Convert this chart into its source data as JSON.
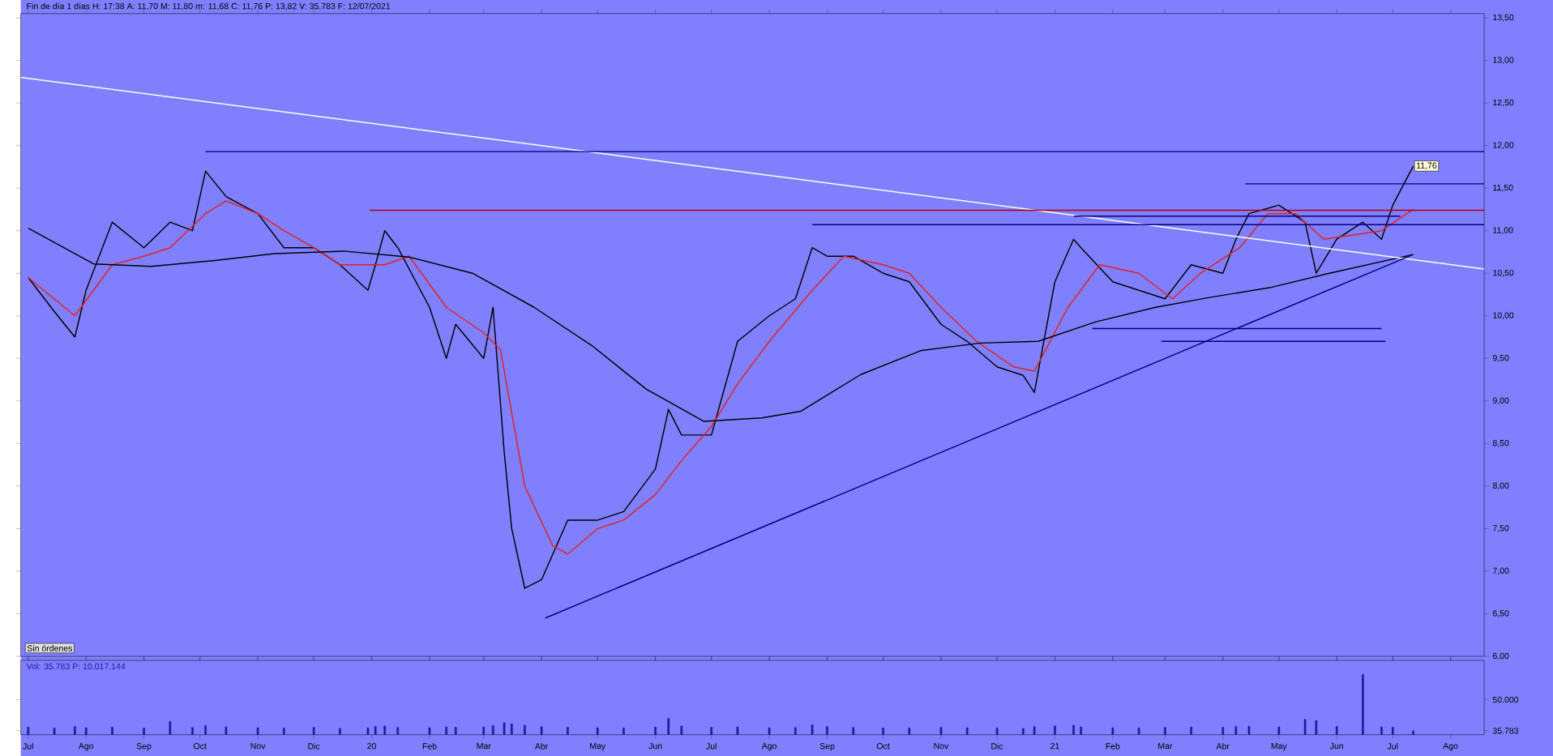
{
  "chart_data": [
    {
      "type": "line",
      "title": "Fin de día 1 días  H: 17:38  A: 11,70  M: 11,80  m: 11,68  C: 11,76  P: 13,82  V: 35.783  F: 12/07/2021",
      "xlim": [
        "2019-06-27",
        "2021-08-19"
      ],
      "ylim": [
        6,
        13.55
      ],
      "tick_labels": "y",
      "xticks": [
        {
          "value": "2019-07-01",
          "label": null
        },
        {
          "value": "2019-08-01",
          "label": null
        },
        {
          "value": "2019-09-01",
          "label": null
        },
        {
          "value": "2019-10-01",
          "label": null
        },
        {
          "value": "2019-11-01",
          "label": null
        },
        {
          "value": "2019-12-01",
          "label": null
        },
        {
          "value": "2020-01-01",
          "label": null
        },
        {
          "value": "2020-02-01",
          "label": null
        },
        {
          "value": "2020-03-01",
          "label": null
        },
        {
          "value": "2020-04-01",
          "label": null
        },
        {
          "value": "2020-05-01",
          "label": null
        },
        {
          "value": "2020-06-01",
          "label": null
        },
        {
          "value": "2020-07-01",
          "label": null
        },
        {
          "value": "2020-08-01",
          "label": null
        },
        {
          "value": "2020-09-01",
          "label": null
        },
        {
          "value": "2020-10-01",
          "label": null
        },
        {
          "value": "2020-11-01",
          "label": null
        },
        {
          "value": "2020-12-01",
          "label": null
        },
        {
          "value": "2021-01-01",
          "label": null
        },
        {
          "value": "2021-02-01",
          "label": null
        },
        {
          "value": "2021-03-01",
          "label": null
        },
        {
          "value": "2021-04-01",
          "label": null
        },
        {
          "value": "2021-05-01",
          "label": null
        },
        {
          "value": "2021-06-01",
          "label": null
        },
        {
          "value": "2021-07-01",
          "label": null
        },
        {
          "value": "2021-08-01",
          "label": null
        }
      ],
      "yticks": [
        {
          "value": 6,
          "label": "6,00"
        },
        {
          "value": 6.5,
          "label": "6,50"
        },
        {
          "value": 7,
          "label": "7,00"
        },
        {
          "value": 7.5,
          "label": "7,50"
        },
        {
          "value": 8,
          "label": "8,00"
        },
        {
          "value": 8.5,
          "label": "8,50"
        },
        {
          "value": 9,
          "label": "9,00"
        },
        {
          "value": 9.5,
          "label": "9,50"
        },
        {
          "value": 10,
          "label": "10,00"
        },
        {
          "value": 10.5,
          "label": "10,50"
        },
        {
          "value": 11,
          "label": "11,00"
        },
        {
          "value": 11.5,
          "label": "11,50"
        },
        {
          "value": 12,
          "label": "12,00"
        },
        {
          "value": 12.5,
          "label": "12,50"
        },
        {
          "value": 13,
          "label": "13,00"
        },
        {
          "value": 13.5,
          "label": "13,50"
        }
      ],
      "series": [
        {
          "color": "#000000",
          "x": [
            "2019-07-01",
            "2019-07-15",
            "2019-07-26",
            "2019-08-01",
            "2019-08-15",
            "2019-09-01",
            "2019-09-15",
            "2019-09-27",
            "2019-10-04",
            "2019-10-15",
            "2019-11-01",
            "2019-11-15",
            "2019-12-01",
            "2019-12-15",
            "2019-12-30",
            "2020-01-03",
            "2020-01-08",
            "2020-01-15",
            "2020-02-01",
            "2020-02-10",
            "2020-02-15",
            "2020-03-01",
            "2020-03-06",
            "2020-03-12",
            "2020-03-16",
            "2020-03-23",
            "2020-04-01",
            "2020-04-15",
            "2020-05-01",
            "2020-05-15",
            "2020-06-01",
            "2020-06-08",
            "2020-06-15",
            "2020-07-01",
            "2020-07-15",
            "2020-08-01",
            "2020-08-15",
            "2020-08-24",
            "2020-09-01",
            "2020-09-15",
            "2020-10-01",
            "2020-10-15",
            "2020-11-01",
            "2020-11-15",
            "2020-12-01",
            "2020-12-15",
            "2020-12-21",
            "2021-01-01",
            "2021-01-11",
            "2021-01-15",
            "2021-02-01",
            "2021-02-15",
            "2021-03-01",
            "2021-03-15",
            "2021-04-01",
            "2021-04-08",
            "2021-04-15",
            "2021-05-01",
            "2021-05-15",
            "2021-05-21",
            "2021-06-01",
            "2021-06-15",
            "2021-06-25",
            "2021-07-01",
            "2021-07-12"
          ],
          "values": [
            10.45,
            10.05,
            9.75,
            10.3,
            11.1,
            10.8,
            11.1,
            11.0,
            11.7,
            11.4,
            11.2,
            10.8,
            10.8,
            10.6,
            10.3,
            10.6,
            11.0,
            10.8,
            10.1,
            9.5,
            9.9,
            9.5,
            10.1,
            8.4,
            7.5,
            6.8,
            6.9,
            7.6,
            7.6,
            7.7,
            8.2,
            8.9,
            8.6,
            8.6,
            9.7,
            10.0,
            10.2,
            10.8,
            10.7,
            10.7,
            10.5,
            10.4,
            9.9,
            9.7,
            9.4,
            9.3,
            9.1,
            10.4,
            10.9,
            10.8,
            10.4,
            10.3,
            10.2,
            10.6,
            10.5,
            10.9,
            11.2,
            11.3,
            11.1,
            10.5,
            10.9,
            11.1,
            10.9,
            11.3,
            11.76
          ]
        },
        {
          "color": "#e02020",
          "x": [
            "2019-07-01",
            "2019-07-26",
            "2019-08-15",
            "2019-09-01",
            "2019-09-15",
            "2019-10-04",
            "2019-10-15",
            "2019-11-01",
            "2019-11-15",
            "2019-12-01",
            "2019-12-15",
            "2020-01-08",
            "2020-01-21",
            "2020-02-10",
            "2020-03-01",
            "2020-03-10",
            "2020-03-23",
            "2020-04-07",
            "2020-04-15",
            "2020-05-01",
            "2020-05-15",
            "2020-06-01",
            "2020-06-15",
            "2020-07-01",
            "2020-07-15",
            "2020-08-01",
            "2020-08-24",
            "2020-09-10",
            "2020-10-01",
            "2020-10-15",
            "2020-11-01",
            "2020-11-20",
            "2020-12-10",
            "2020-12-21",
            "2021-01-08",
            "2021-01-25",
            "2021-02-15",
            "2021-03-05",
            "2021-03-20",
            "2021-04-10",
            "2021-04-25",
            "2021-05-10",
            "2021-05-25",
            "2021-06-10",
            "2021-06-25",
            "2021-07-12"
          ],
          "values": [
            10.45,
            10.0,
            10.6,
            10.7,
            10.8,
            11.2,
            11.35,
            11.2,
            11.0,
            10.8,
            10.6,
            10.6,
            10.7,
            10.1,
            9.8,
            9.6,
            8.0,
            7.3,
            7.2,
            7.5,
            7.6,
            7.9,
            8.3,
            8.7,
            9.2,
            9.7,
            10.3,
            10.7,
            10.6,
            10.5,
            10.1,
            9.7,
            9.4,
            9.35,
            10.1,
            10.6,
            10.5,
            10.2,
            10.5,
            10.8,
            11.2,
            11.2,
            10.9,
            10.95,
            11.0,
            11.25
          ]
        },
        {
          "color": "#000000",
          "x": [
            "2019-07-01",
            "2019-08-05",
            "2019-09-05",
            "2019-10-09",
            "2019-11-10",
            "2019-12-17",
            "2020-01-21",
            "2020-02-24",
            "2020-03-28",
            "2020-04-28",
            "2020-05-27",
            "2020-06-27",
            "2020-07-28",
            "2020-08-18",
            "2020-09-19",
            "2020-10-21",
            "2020-11-22",
            "2020-12-23",
            "2021-01-23",
            "2021-02-24",
            "2021-03-26",
            "2021-04-26",
            "2021-05-28",
            "2021-07-12"
          ],
          "values": [
            11.03,
            10.61,
            10.58,
            10.65,
            10.73,
            10.76,
            10.69,
            10.5,
            10.1,
            9.65,
            9.14,
            8.76,
            8.8,
            8.88,
            9.31,
            9.59,
            9.68,
            9.7,
            9.93,
            10.1,
            10.22,
            10.33,
            10.5,
            10.72
          ]
        },
        {
          "color": "#ffffff",
          "x": [
            "2019-06-27",
            "2021-08-19"
          ],
          "values": [
            12.8,
            10.55
          ]
        },
        {
          "color": "#000080",
          "x": [
            "2020-04-03",
            "2021-07-12"
          ],
          "values": [
            6.45,
            10.72
          ]
        },
        {
          "color": "#000080",
          "x": [
            "2019-10-04",
            "2021-08-19"
          ],
          "values": [
            11.93,
            11.93
          ]
        },
        {
          "color": "#b00000",
          "x": [
            "2019-12-31",
            "2021-08-19"
          ],
          "values": [
            11.24,
            11.24
          ]
        },
        {
          "color": "#000080",
          "x": [
            "2020-08-24",
            "2021-08-19"
          ],
          "values": [
            11.07,
            11.07
          ]
        },
        {
          "color": "#000080",
          "x": [
            "2021-01-11",
            "2021-07-05"
          ],
          "values": [
            11.17,
            11.17
          ]
        },
        {
          "color": "#000080",
          "x": [
            "2021-04-13",
            "2021-08-19"
          ],
          "values": [
            11.55,
            11.55
          ]
        },
        {
          "color": "#000080",
          "x": [
            "2021-01-21",
            "2021-06-25"
          ],
          "values": [
            9.85,
            9.85
          ]
        },
        {
          "color": "#000080",
          "x": [
            "2021-02-27",
            "2021-06-27"
          ],
          "values": [
            9.7,
            9.7
          ]
        }
      ],
      "annotations": [
        {
          "text": "11,76",
          "x": "2021-07-12",
          "y": 11.76
        },
        "Sin órdenes"
      ]
    },
    {
      "type": "bar",
      "title": "Vol: 35.783  P: 10.017.144",
      "color": "#1a1aa0",
      "xlim": [
        "2019-06-27",
        "2021-08-19"
      ],
      "ylim": [
        34000,
        68000
      ],
      "xticks": [
        {
          "value": "2019-07-01",
          "label": "Jul"
        },
        {
          "value": "2019-08-01",
          "label": "Ago"
        },
        {
          "value": "2019-09-01",
          "label": "Sep"
        },
        {
          "value": "2019-10-01",
          "label": "Oct"
        },
        {
          "value": "2019-11-01",
          "label": "Nov"
        },
        {
          "value": "2019-12-01",
          "label": "Dic"
        },
        {
          "value": "2020-01-01",
          "label": "20"
        },
        {
          "value": "2020-02-01",
          "label": "Feb"
        },
        {
          "value": "2020-03-01",
          "label": "Mar"
        },
        {
          "value": "2020-04-01",
          "label": "Abr"
        },
        {
          "value": "2020-05-01",
          "label": "May"
        },
        {
          "value": "2020-06-01",
          "label": "Jun"
        },
        {
          "value": "2020-07-01",
          "label": "Jul"
        },
        {
          "value": "2020-08-01",
          "label": "Ago"
        },
        {
          "value": "2020-09-01",
          "label": "Sep"
        },
        {
          "value": "2020-10-01",
          "label": "Oct"
        },
        {
          "value": "2020-11-01",
          "label": "Nov"
        },
        {
          "value": "2020-12-01",
          "label": "Dic"
        },
        {
          "value": "2021-01-01",
          "label": "21"
        },
        {
          "value": "2021-02-01",
          "label": "Feb"
        },
        {
          "value": "2021-03-01",
          "label": "Mar"
        },
        {
          "value": "2021-04-01",
          "label": "Abr"
        },
        {
          "value": "2021-05-01",
          "label": "May"
        },
        {
          "value": "2021-06-01",
          "label": "Jun"
        },
        {
          "value": "2021-07-01",
          "label": "Jul"
        },
        {
          "value": "2021-08-01",
          "label": "Ago"
        }
      ],
      "yticks": [
        {
          "value": 35783,
          "label": "35.783"
        },
        {
          "value": 50000,
          "label": "50.000"
        }
      ],
      "x": [
        "2019-07-01",
        "2019-07-15",
        "2019-07-26",
        "2019-08-01",
        "2019-08-15",
        "2019-09-01",
        "2019-09-15",
        "2019-09-27",
        "2019-10-04",
        "2019-10-15",
        "2019-11-01",
        "2019-11-15",
        "2019-12-01",
        "2019-12-15",
        "2019-12-30",
        "2020-01-03",
        "2020-01-08",
        "2020-01-15",
        "2020-02-01",
        "2020-02-10",
        "2020-02-15",
        "2020-03-01",
        "2020-03-06",
        "2020-03-12",
        "2020-03-16",
        "2020-03-23",
        "2020-04-01",
        "2020-04-15",
        "2020-05-01",
        "2020-05-15",
        "2020-06-01",
        "2020-06-08",
        "2020-06-15",
        "2020-07-01",
        "2020-07-15",
        "2020-08-01",
        "2020-08-15",
        "2020-08-24",
        "2020-09-01",
        "2020-09-15",
        "2020-10-01",
        "2020-10-15",
        "2020-11-01",
        "2020-11-15",
        "2020-12-01",
        "2020-12-15",
        "2020-12-21",
        "2021-01-01",
        "2021-01-11",
        "2021-01-15",
        "2021-02-01",
        "2021-02-15",
        "2021-03-01",
        "2021-03-15",
        "2021-04-01",
        "2021-04-08",
        "2021-04-15",
        "2021-05-01",
        "2021-05-15",
        "2021-05-21",
        "2021-06-01",
        "2021-06-15",
        "2021-06-25",
        "2021-07-01",
        "2021-07-12"
      ],
      "values": [
        37500,
        37000,
        37800,
        37200,
        37500,
        37000,
        40000,
        37300,
        38200,
        37600,
        37200,
        37000,
        37400,
        36900,
        37100,
        37800,
        38000,
        37300,
        37200,
        37600,
        37400,
        37500,
        38200,
        39500,
        39000,
        38300,
        37700,
        37400,
        37200,
        37000,
        37500,
        41500,
        38000,
        37400,
        37600,
        37200,
        37300,
        38500,
        37800,
        37300,
        37100,
        37000,
        37400,
        37200,
        37000,
        36900,
        37800,
        38000,
        38300,
        37600,
        37200,
        37000,
        37300,
        37500,
        37400,
        37800,
        37900,
        37600,
        41000,
        40500,
        37800,
        61500,
        37600,
        37400,
        35783
      ]
    }
  ]
}
